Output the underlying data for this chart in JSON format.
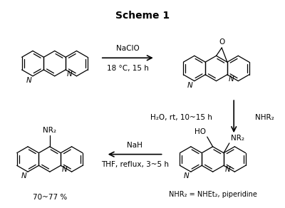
{
  "title": "Scheme 1",
  "title_fontsize": 10,
  "title_fontweight": "bold",
  "background_color": "#ffffff",
  "figsize": [
    4.0,
    2.92
  ],
  "dpi": 100,
  "arrow1_label1": "NaClO",
  "arrow1_label2": "18 °C, 15 h",
  "arrow2_label1": "H₂O, rt, 10~15 h",
  "arrow2_label2": "NHR₂",
  "arrow3_label1": "NaH",
  "arrow3_label2": "THF, reflux, 3~5 h",
  "bottom_left_label": "70~77 %",
  "bottom_right_label": "NHR₂ = NHEt₂, piperidine"
}
